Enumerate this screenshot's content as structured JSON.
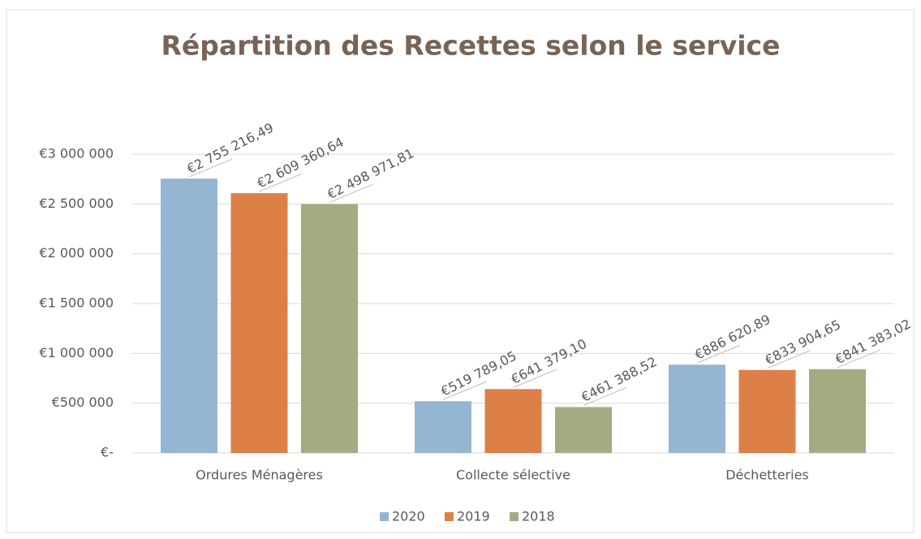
{
  "chart_data": {
    "type": "bar",
    "title": "Répartition des Recettes selon le service",
    "categories": [
      "Ordures Ménagères",
      "Collecte sélective",
      "Déchetteries"
    ],
    "series": [
      {
        "name": "2020",
        "color": "#94b6d2",
        "values": [
          2755216.49,
          519789.05,
          886620.89
        ],
        "value_labels": [
          "€2 755 216,49",
          "€519 789,05",
          "€886 620,89"
        ]
      },
      {
        "name": "2019",
        "color": "#dd8047",
        "values": [
          2609360.64,
          641379.1,
          833904.65
        ],
        "value_labels": [
          "€2 609 360,64",
          "€641 379,10",
          "€833 904,65"
        ]
      },
      {
        "name": "2018",
        "color": "#a5ab81",
        "values": [
          2498971.81,
          461388.52,
          841383.02
        ],
        "value_labels": [
          "€2 498 971,81",
          "€461 388,52",
          "€841 383,02"
        ]
      }
    ],
    "ylim": [
      0,
      3000000
    ],
    "yticks": [
      {
        "value": 0,
        "label": "€-"
      },
      {
        "value": 500000,
        "label": "€500 000"
      },
      {
        "value": 1000000,
        "label": "€1 000 000"
      },
      {
        "value": 1500000,
        "label": "€1 500 000"
      },
      {
        "value": 2000000,
        "label": "€2 000 000"
      },
      {
        "value": 2500000,
        "label": "€2 500 000"
      },
      {
        "value": 3000000,
        "label": "€3 000 000"
      }
    ],
    "grid": true,
    "legend": "bottom"
  }
}
